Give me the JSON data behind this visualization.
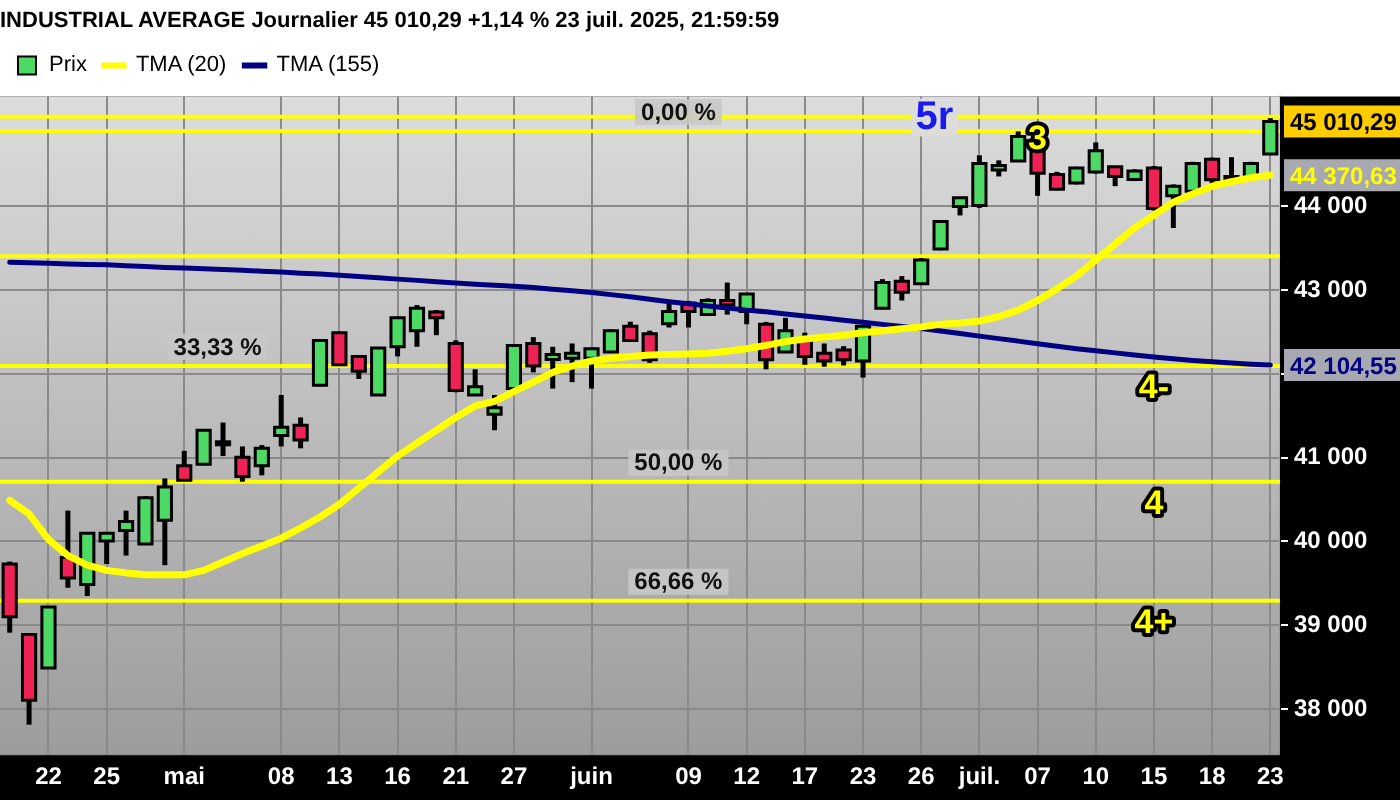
{
  "chart_data": {
    "type": "candlestick",
    "title": "INDUSTRIAL AVERAGE Journalier 45 010,29 +1,14 % 23 juil. 2025, 21:59:59",
    "categories": [
      null,
      null,
      "22",
      null,
      null,
      "25",
      null,
      null,
      null,
      "mai",
      null,
      null,
      null,
      null,
      "08",
      null,
      null,
      "13",
      null,
      null,
      "16",
      null,
      null,
      "21",
      null,
      null,
      "27",
      null,
      null,
      null,
      "juin",
      null,
      null,
      null,
      null,
      "09",
      null,
      null,
      "12",
      null,
      null,
      "17",
      null,
      null,
      "23",
      null,
      null,
      "26",
      null,
      null,
      "juil.",
      null,
      null,
      "07",
      null,
      null,
      "10",
      null,
      null,
      "15",
      null,
      null,
      "18",
      null,
      null,
      "23"
    ],
    "series": [
      {
        "name": "Prix",
        "ohlc": [
          [
            39731,
            39760,
            38912,
            39103
          ],
          [
            38889,
            38900,
            37815,
            38107
          ],
          [
            38489,
            39230,
            38480,
            39218
          ],
          [
            39809,
            40368,
            39448,
            39563
          ],
          [
            39487,
            40110,
            39349,
            40099
          ],
          [
            40007,
            40110,
            39731,
            40099
          ],
          [
            40131,
            40368,
            39832,
            40237
          ],
          [
            39970,
            40540,
            39960,
            40522
          ],
          [
            40253,
            40752,
            39717,
            40651
          ],
          [
            40904,
            41081,
            40720,
            40729
          ],
          [
            40920,
            41340,
            40910,
            41327
          ],
          [
            41157,
            41419,
            41019,
            41189
          ],
          [
            41005,
            41134,
            40713,
            40775
          ],
          [
            40904,
            41150,
            40789,
            41111
          ],
          [
            41265,
            41748,
            41134,
            41364
          ],
          [
            41387,
            41480,
            41111,
            41212
          ],
          [
            41863,
            42410,
            41850,
            42399
          ],
          [
            42491,
            42500,
            42100,
            42108
          ],
          [
            42208,
            42220,
            41939,
            42031
          ],
          [
            41748,
            42320,
            41740,
            42307
          ],
          [
            42323,
            42680,
            42208,
            42668
          ],
          [
            42514,
            42820,
            42323,
            42783
          ],
          [
            42737,
            42760,
            42461,
            42668
          ],
          [
            42362,
            42400,
            41780,
            41801
          ],
          [
            41748,
            42054,
            41740,
            41847
          ],
          [
            41518,
            41748,
            41327,
            41594
          ],
          [
            41824,
            42350,
            41810,
            42339
          ],
          [
            42362,
            42438,
            42017,
            42093
          ],
          [
            42170,
            42323,
            41824,
            42231
          ],
          [
            42185,
            42362,
            41901,
            42246
          ],
          [
            42185,
            42310,
            41824,
            42300
          ],
          [
            42261,
            42530,
            42250,
            42514
          ],
          [
            42568,
            42622,
            42390,
            42399
          ],
          [
            42477,
            42515,
            42131,
            42169
          ],
          [
            42599,
            42875,
            42553,
            42744
          ],
          [
            42845,
            42870,
            42553,
            42744
          ],
          [
            42707,
            42900,
            42690,
            42875
          ],
          [
            42875,
            43089,
            42707,
            42821
          ],
          [
            42744,
            42960,
            42592,
            42951
          ],
          [
            42592,
            42620,
            42054,
            42169
          ],
          [
            42261,
            42668,
            42250,
            42514
          ],
          [
            42415,
            42491,
            42108,
            42208
          ],
          [
            42246,
            42362,
            42085,
            42154
          ],
          [
            42284,
            42330,
            42100,
            42169
          ],
          [
            42154,
            42580,
            41955,
            42568
          ],
          [
            42783,
            43130,
            42770,
            43089
          ],
          [
            43105,
            43166,
            42875,
            42974
          ],
          [
            43075,
            43380,
            43060,
            43358
          ],
          [
            43489,
            43830,
            43475,
            43818
          ],
          [
            43995,
            44110,
            43890,
            44101
          ],
          [
            44009,
            44607,
            43980,
            44508
          ],
          [
            44432,
            44547,
            44355,
            44485
          ],
          [
            44540,
            44892,
            44530,
            44831
          ],
          [
            44791,
            44820,
            44124,
            44393
          ],
          [
            44377,
            44410,
            44190,
            44201
          ],
          [
            44278,
            44470,
            44260,
            44455
          ],
          [
            44409,
            44761,
            44390,
            44662
          ],
          [
            44470,
            44480,
            44239,
            44355
          ],
          [
            44320,
            44440,
            44300,
            44421
          ],
          [
            44455,
            44480,
            43950,
            43972
          ],
          [
            44124,
            44260,
            43740,
            44239
          ],
          [
            44178,
            44530,
            44160,
            44508
          ],
          [
            44561,
            44580,
            44239,
            44316
          ],
          [
            44354,
            44585,
            44278,
            44316
          ],
          [
            44354,
            44530,
            44330,
            44508
          ],
          [
            44623,
            45050,
            44610,
            45010.29
          ]
        ],
        "colors": [
          "#ee2255",
          "#ee2255",
          "#4cd964",
          "#ee2255",
          "#4cd964",
          "#4cd964",
          "#4cd964",
          "#4cd964",
          "#4cd964",
          "#ee2255",
          "#4cd964",
          "#4cd964",
          "#ee2255",
          "#4cd964",
          "#4cd964",
          "#ee2255",
          "#4cd964",
          "#ee2255",
          "#ee2255",
          "#4cd964",
          "#4cd964",
          "#4cd964",
          "#ee2255",
          "#ee2255",
          "#4cd964",
          "#4cd964",
          "#4cd964",
          "#ee2255",
          "#4cd964",
          "#4cd964",
          "#4cd964",
          "#4cd964",
          "#ee2255",
          "#ee2255",
          "#4cd964",
          "#ee2255",
          "#4cd964",
          "#ee2255",
          "#4cd964",
          "#ee2255",
          "#4cd964",
          "#ee2255",
          "#ee2255",
          "#ee2255",
          "#4cd964",
          "#4cd964",
          "#ee2255",
          "#4cd964",
          "#4cd964",
          "#4cd964",
          "#4cd964",
          "#4cd964",
          "#4cd964",
          "#ee2255",
          "#ee2255",
          "#4cd964",
          "#4cd964",
          "#ee2255",
          "#4cd964",
          "#ee2255",
          "#4cd964",
          "#4cd964",
          "#ee2255",
          "#ee2255",
          "#4cd964",
          "#4cd964"
        ],
        "value_labels": [
          null,
          null,
          null,
          null,
          null,
          null,
          null,
          null,
          null,
          null,
          null,
          null,
          null,
          null,
          null,
          null,
          null,
          null,
          null,
          null,
          null,
          null,
          null,
          null,
          null,
          null,
          null,
          null,
          null,
          null,
          null,
          null,
          null,
          null,
          null,
          null,
          null,
          null,
          null,
          null,
          null,
          null,
          null,
          null,
          null,
          null,
          null,
          null,
          null,
          null,
          null,
          null,
          null,
          null,
          null,
          null,
          null,
          null,
          null,
          null,
          null,
          null,
          null,
          null,
          null,
          "45 010,29"
        ]
      },
      {
        "name": "TMA (20)",
        "type": "line",
        "color": "#ffff00",
        "values": [
          40490,
          40329,
          40023,
          39832,
          39717,
          39655,
          39625,
          39602,
          39602,
          39602,
          39655,
          39754,
          39855,
          39947,
          40039,
          40161,
          40292,
          40444,
          40637,
          40828,
          41019,
          41173,
          41327,
          41479,
          41617,
          41672,
          41787,
          41902,
          42017,
          42093,
          42154,
          42185,
          42208,
          42224,
          42231,
          42238,
          42246,
          42269,
          42300,
          42339,
          42385,
          42415,
          42438,
          42461,
          42491,
          42514,
          42537,
          42560,
          42592,
          42606,
          42629,
          42684,
          42760,
          42875,
          43013,
          43166,
          43358,
          43549,
          43742,
          43894,
          44048,
          44147,
          44239,
          44293,
          44339,
          44370.63
        ],
        "value_labels": [
          null,
          null,
          null,
          null,
          null,
          null,
          null,
          null,
          null,
          null,
          null,
          null,
          null,
          null,
          null,
          null,
          null,
          null,
          null,
          null,
          null,
          null,
          null,
          null,
          null,
          null,
          null,
          null,
          null,
          null,
          null,
          null,
          null,
          null,
          null,
          null,
          null,
          null,
          null,
          null,
          null,
          null,
          null,
          null,
          null,
          null,
          null,
          null,
          null,
          null,
          null,
          null,
          null,
          null,
          null,
          null,
          null,
          null,
          null,
          null,
          null,
          null,
          null,
          null,
          null,
          "44 370,63"
        ]
      },
      {
        "name": "TMA (155)",
        "type": "line",
        "color": "#000080",
        "values": [
          43330,
          43325,
          43320,
          43310,
          43305,
          43300,
          43290,
          43280,
          43270,
          43262,
          43255,
          43245,
          43235,
          43225,
          43215,
          43200,
          43190,
          43175,
          43160,
          43145,
          43130,
          43115,
          43100,
          43085,
          43070,
          43058,
          43045,
          43030,
          43010,
          42990,
          42970,
          42945,
          42920,
          42890,
          42860,
          42835,
          42810,
          42785,
          42760,
          42740,
          42715,
          42690,
          42665,
          42640,
          42615,
          42590,
          42565,
          42540,
          42510,
          42480,
          42450,
          42420,
          42390,
          42360,
          42330,
          42300,
          42275,
          42250,
          42225,
          42200,
          42180,
          42160,
          42145,
          42130,
          42115,
          42104.55
        ],
        "value_labels": [
          null,
          null,
          null,
          null,
          null,
          null,
          null,
          null,
          null,
          null,
          null,
          null,
          null,
          null,
          null,
          null,
          null,
          null,
          null,
          null,
          null,
          null,
          null,
          null,
          null,
          null,
          null,
          null,
          null,
          null,
          null,
          null,
          null,
          null,
          null,
          null,
          null,
          null,
          null,
          null,
          null,
          null,
          null,
          null,
          null,
          null,
          null,
          null,
          null,
          null,
          null,
          null,
          null,
          null,
          null,
          null,
          null,
          null,
          null,
          null,
          null,
          null,
          null,
          null,
          null,
          "42 104,55"
        ]
      }
    ],
    "ylim": [
      37450,
      45310
    ],
    "yticks": [
      {
        "value": 38000,
        "label": "38 000"
      },
      {
        "value": 39000,
        "label": "39 000"
      },
      {
        "value": 40000,
        "label": "40 000"
      },
      {
        "value": 41000,
        "label": "41 000"
      },
      {
        "value": 42000,
        "label": null
      },
      {
        "value": 43000,
        "label": "43 000"
      },
      {
        "value": 44000,
        "label": "44 000"
      }
    ],
    "ref_lines": [
      {
        "axis": "y",
        "value": 45067,
        "color": "#ffff00"
      },
      {
        "axis": "y",
        "value": 44898,
        "color": "#ffff00"
      },
      {
        "axis": "y",
        "value": 43404,
        "color": "#ffff00"
      },
      {
        "axis": "y",
        "value": 42093,
        "color": "#ffff00"
      },
      {
        "axis": "y",
        "value": 40713,
        "color": "#ffff00"
      },
      {
        "axis": "y",
        "value": 39294,
        "color": "#ffff00"
      }
    ],
    "annotations": [
      "5r",
      {
        "text": "0,00 %",
        "y": 44898
      },
      {
        "text": "33,33 %",
        "y": 42093
      },
      {
        "text": "50,00 %",
        "y": 40713
      },
      {
        "text": "66,66 %",
        "y": 39294
      },
      {
        "text": "3",
        "x": "07",
        "y": 45067
      },
      {
        "text": "4-",
        "x": "15",
        "y": 42093
      },
      {
        "text": "4",
        "x": "15",
        "y": 40713
      },
      {
        "text": "4+",
        "x": "15",
        "y": 39294
      }
    ],
    "grid": true,
    "legend": "top left"
  }
}
